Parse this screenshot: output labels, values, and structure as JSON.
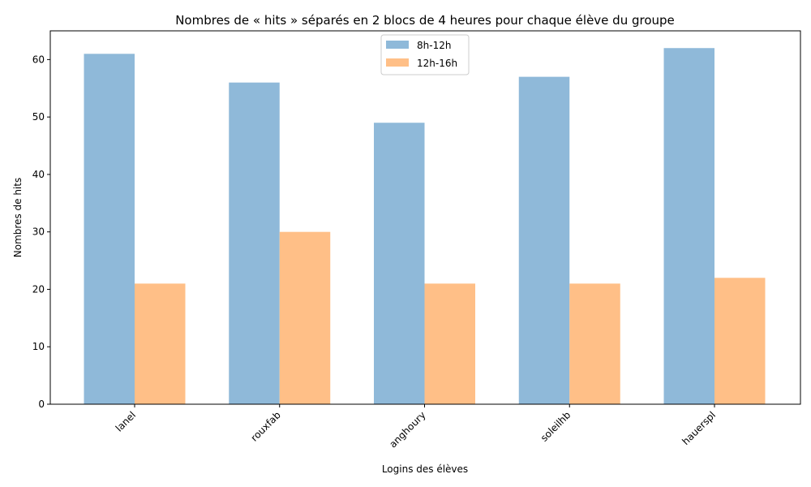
{
  "chart_data": {
    "type": "bar",
    "title": "Nombres de « hits » séparés en 2 blocs de 4 heures pour chaque élève du groupe",
    "xlabel": "Logins des élèves",
    "ylabel": "Nombres de hits",
    "categories": [
      "lanel",
      "rouxfab",
      "anghoury",
      "soleilhb",
      "hauerspl"
    ],
    "series": [
      {
        "name": "8h-12h",
        "values": [
          61,
          56,
          49,
          57,
          62
        ],
        "color": "#8fb9d9"
      },
      {
        "name": "12h-16h",
        "values": [
          21,
          30,
          21,
          21,
          22
        ],
        "color": "#ffbf87"
      }
    ],
    "ylim": [
      0,
      65
    ],
    "yticks": [
      0,
      10,
      20,
      30,
      40,
      50,
      60
    ],
    "grid": false,
    "legend_position": "top-center",
    "xtick_rotation": 45
  }
}
